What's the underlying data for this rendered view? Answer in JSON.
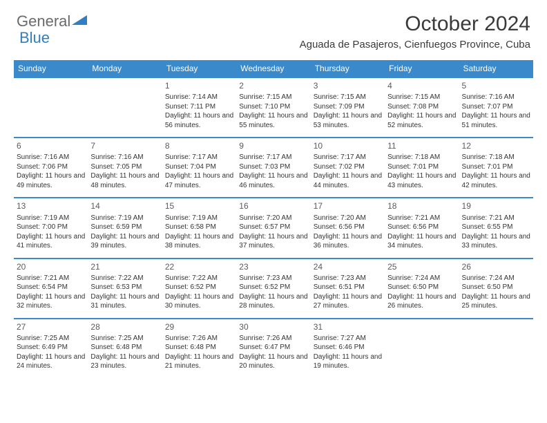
{
  "header": {
    "logo_general": "General",
    "logo_blue": "Blue",
    "title": "October 2024",
    "location": "Aguada de Pasajeros, Cienfuegos Province, Cuba"
  },
  "colors": {
    "header_bar": "#3a8acb",
    "logo_blue": "#2f7fc2",
    "logo_gray": "#6a6a6a",
    "text": "#3a3a3a"
  },
  "dow": [
    "Sunday",
    "Monday",
    "Tuesday",
    "Wednesday",
    "Thursday",
    "Friday",
    "Saturday"
  ],
  "weeks": [
    [
      null,
      null,
      {
        "n": "1",
        "sr": "Sunrise: 7:14 AM",
        "ss": "Sunset: 7:11 PM",
        "dl": "Daylight: 11 hours and 56 minutes."
      },
      {
        "n": "2",
        "sr": "Sunrise: 7:15 AM",
        "ss": "Sunset: 7:10 PM",
        "dl": "Daylight: 11 hours and 55 minutes."
      },
      {
        "n": "3",
        "sr": "Sunrise: 7:15 AM",
        "ss": "Sunset: 7:09 PM",
        "dl": "Daylight: 11 hours and 53 minutes."
      },
      {
        "n": "4",
        "sr": "Sunrise: 7:15 AM",
        "ss": "Sunset: 7:08 PM",
        "dl": "Daylight: 11 hours and 52 minutes."
      },
      {
        "n": "5",
        "sr": "Sunrise: 7:16 AM",
        "ss": "Sunset: 7:07 PM",
        "dl": "Daylight: 11 hours and 51 minutes."
      }
    ],
    [
      {
        "n": "6",
        "sr": "Sunrise: 7:16 AM",
        "ss": "Sunset: 7:06 PM",
        "dl": "Daylight: 11 hours and 49 minutes."
      },
      {
        "n": "7",
        "sr": "Sunrise: 7:16 AM",
        "ss": "Sunset: 7:05 PM",
        "dl": "Daylight: 11 hours and 48 minutes."
      },
      {
        "n": "8",
        "sr": "Sunrise: 7:17 AM",
        "ss": "Sunset: 7:04 PM",
        "dl": "Daylight: 11 hours and 47 minutes."
      },
      {
        "n": "9",
        "sr": "Sunrise: 7:17 AM",
        "ss": "Sunset: 7:03 PM",
        "dl": "Daylight: 11 hours and 46 minutes."
      },
      {
        "n": "10",
        "sr": "Sunrise: 7:17 AM",
        "ss": "Sunset: 7:02 PM",
        "dl": "Daylight: 11 hours and 44 minutes."
      },
      {
        "n": "11",
        "sr": "Sunrise: 7:18 AM",
        "ss": "Sunset: 7:01 PM",
        "dl": "Daylight: 11 hours and 43 minutes."
      },
      {
        "n": "12",
        "sr": "Sunrise: 7:18 AM",
        "ss": "Sunset: 7:01 PM",
        "dl": "Daylight: 11 hours and 42 minutes."
      }
    ],
    [
      {
        "n": "13",
        "sr": "Sunrise: 7:19 AM",
        "ss": "Sunset: 7:00 PM",
        "dl": "Daylight: 11 hours and 41 minutes."
      },
      {
        "n": "14",
        "sr": "Sunrise: 7:19 AM",
        "ss": "Sunset: 6:59 PM",
        "dl": "Daylight: 11 hours and 39 minutes."
      },
      {
        "n": "15",
        "sr": "Sunrise: 7:19 AM",
        "ss": "Sunset: 6:58 PM",
        "dl": "Daylight: 11 hours and 38 minutes."
      },
      {
        "n": "16",
        "sr": "Sunrise: 7:20 AM",
        "ss": "Sunset: 6:57 PM",
        "dl": "Daylight: 11 hours and 37 minutes."
      },
      {
        "n": "17",
        "sr": "Sunrise: 7:20 AM",
        "ss": "Sunset: 6:56 PM",
        "dl": "Daylight: 11 hours and 36 minutes."
      },
      {
        "n": "18",
        "sr": "Sunrise: 7:21 AM",
        "ss": "Sunset: 6:56 PM",
        "dl": "Daylight: 11 hours and 34 minutes."
      },
      {
        "n": "19",
        "sr": "Sunrise: 7:21 AM",
        "ss": "Sunset: 6:55 PM",
        "dl": "Daylight: 11 hours and 33 minutes."
      }
    ],
    [
      {
        "n": "20",
        "sr": "Sunrise: 7:21 AM",
        "ss": "Sunset: 6:54 PM",
        "dl": "Daylight: 11 hours and 32 minutes."
      },
      {
        "n": "21",
        "sr": "Sunrise: 7:22 AM",
        "ss": "Sunset: 6:53 PM",
        "dl": "Daylight: 11 hours and 31 minutes."
      },
      {
        "n": "22",
        "sr": "Sunrise: 7:22 AM",
        "ss": "Sunset: 6:52 PM",
        "dl": "Daylight: 11 hours and 30 minutes."
      },
      {
        "n": "23",
        "sr": "Sunrise: 7:23 AM",
        "ss": "Sunset: 6:52 PM",
        "dl": "Daylight: 11 hours and 28 minutes."
      },
      {
        "n": "24",
        "sr": "Sunrise: 7:23 AM",
        "ss": "Sunset: 6:51 PM",
        "dl": "Daylight: 11 hours and 27 minutes."
      },
      {
        "n": "25",
        "sr": "Sunrise: 7:24 AM",
        "ss": "Sunset: 6:50 PM",
        "dl": "Daylight: 11 hours and 26 minutes."
      },
      {
        "n": "26",
        "sr": "Sunrise: 7:24 AM",
        "ss": "Sunset: 6:50 PM",
        "dl": "Daylight: 11 hours and 25 minutes."
      }
    ],
    [
      {
        "n": "27",
        "sr": "Sunrise: 7:25 AM",
        "ss": "Sunset: 6:49 PM",
        "dl": "Daylight: 11 hours and 24 minutes."
      },
      {
        "n": "28",
        "sr": "Sunrise: 7:25 AM",
        "ss": "Sunset: 6:48 PM",
        "dl": "Daylight: 11 hours and 23 minutes."
      },
      {
        "n": "29",
        "sr": "Sunrise: 7:26 AM",
        "ss": "Sunset: 6:48 PM",
        "dl": "Daylight: 11 hours and 21 minutes."
      },
      {
        "n": "30",
        "sr": "Sunrise: 7:26 AM",
        "ss": "Sunset: 6:47 PM",
        "dl": "Daylight: 11 hours and 20 minutes."
      },
      {
        "n": "31",
        "sr": "Sunrise: 7:27 AM",
        "ss": "Sunset: 6:46 PM",
        "dl": "Daylight: 11 hours and 19 minutes."
      },
      null,
      null
    ]
  ]
}
